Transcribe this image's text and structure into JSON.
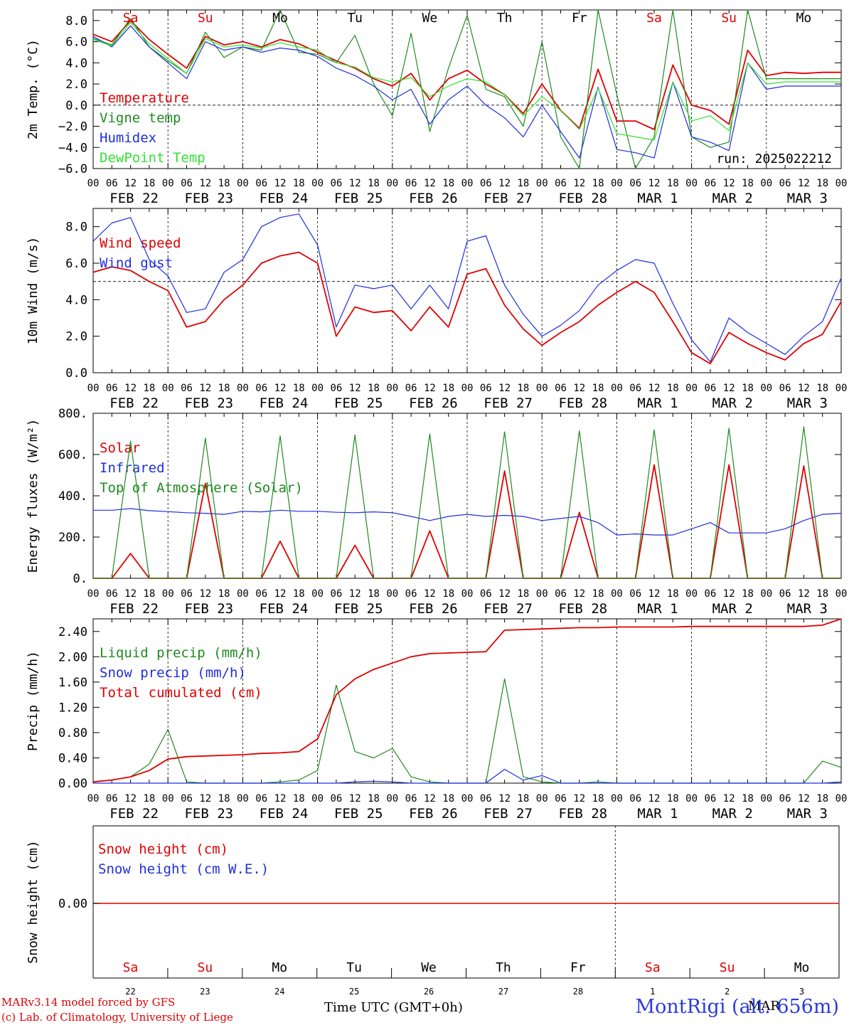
{
  "chart_data": [
    {
      "type": "line",
      "ylabel": "2m Temp. (°C)",
      "ylim": [
        -6,
        9
      ],
      "yticks": [
        "8.0",
        "6.0",
        "4.0",
        "2.0",
        "0.0",
        "−2.0",
        "−4.0",
        "−6.0"
      ],
      "reference_line": 0,
      "weekdays": [
        {
          "label": "Sa",
          "weekend": true
        },
        {
          "label": "Su",
          "weekend": true
        },
        {
          "label": "Mo",
          "weekend": false
        },
        {
          "label": "Tu",
          "weekend": false
        },
        {
          "label": "We",
          "weekend": false
        },
        {
          "label": "Th",
          "weekend": false
        },
        {
          "label": "Fr",
          "weekend": false
        },
        {
          "label": "Sa",
          "weekend": true
        },
        {
          "label": "Su",
          "weekend": true
        },
        {
          "label": "Mo",
          "weekend": false
        }
      ],
      "run_label": "run: 2025022212",
      "x_hours": [
        0,
        6,
        12,
        18,
        24,
        30,
        36,
        42,
        48,
        54,
        60,
        66,
        72,
        78,
        84,
        90,
        96,
        102,
        108,
        114,
        120,
        126,
        132,
        138,
        144,
        150,
        156,
        162,
        168,
        174,
        180,
        186,
        192,
        198,
        204,
        210,
        216,
        222,
        228,
        234,
        240
      ],
      "series": [
        {
          "name": "Temperature",
          "color": "#e00000",
          "values": [
            6.7,
            6.0,
            8.0,
            6.2,
            4.8,
            3.5,
            6.5,
            5.7,
            6.0,
            5.5,
            6.2,
            5.8,
            5.0,
            4.2,
            3.5,
            2.5,
            1.8,
            3.0,
            0.5,
            2.5,
            3.3,
            2.0,
            1.0,
            -0.8,
            2.0,
            -0.5,
            -2.2,
            3.4,
            -1.5,
            -1.5,
            -2.3,
            3.8,
            0.0,
            -0.5,
            -1.8,
            5.2,
            2.8,
            3.1,
            3.0,
            3.1,
            3.1
          ]
        },
        {
          "name": "Vigne temp",
          "color": "#1f8a1f",
          "values": [
            6.3,
            5.7,
            8.2,
            5.5,
            4.2,
            3.0,
            6.9,
            4.5,
            5.5,
            5.2,
            9.0,
            5.0,
            4.8,
            4.0,
            6.6,
            2.0,
            -1.0,
            6.8,
            -2.5,
            3.5,
            8.5,
            1.5,
            0.8,
            -2.0,
            6.0,
            -3.0,
            -6.0,
            9.2,
            1.0,
            -6.0,
            -3.0,
            9.2,
            -3.0,
            -4.0,
            -3.5,
            9.2,
            2.5,
            2.5,
            2.5,
            2.5,
            2.5
          ]
        },
        {
          "name": "Humidex",
          "color": "#1f2ee0",
          "values": [
            6.5,
            5.5,
            7.5,
            5.5,
            4.0,
            2.5,
            6.0,
            5.2,
            5.5,
            5.0,
            5.4,
            5.2,
            4.6,
            3.5,
            2.8,
            1.8,
            0.5,
            1.5,
            -1.8,
            0.5,
            1.8,
            0.0,
            -1.2,
            -3.0,
            0.0,
            -2.5,
            -5.0,
            1.7,
            -4.2,
            -4.5,
            -5.0,
            2.2,
            -3.0,
            -3.5,
            -4.3,
            4.0,
            1.5,
            1.8,
            1.8,
            1.8,
            1.8
          ]
        },
        {
          "name": "DewPoint Temp",
          "color": "#33e133",
          "values": [
            6.2,
            5.6,
            7.8,
            5.8,
            4.4,
            3.0,
            6.3,
            5.5,
            5.7,
            5.4,
            5.9,
            5.5,
            5.2,
            4.0,
            3.6,
            2.6,
            2.2,
            2.6,
            0.8,
            1.8,
            2.5,
            2.2,
            1.0,
            -1.0,
            0.8,
            -0.5,
            -2.3,
            1.6,
            -2.7,
            -3.0,
            -3.3,
            2.2,
            -1.5,
            -1.0,
            -2.4,
            4.0,
            2.0,
            2.2,
            2.2,
            2.2,
            2.2
          ]
        }
      ],
      "months_row": [
        "FEB 22",
        "FEB 23",
        "FEB 24",
        "FEB 25",
        "FEB 26",
        "FEB 27",
        "FEB 28",
        "MAR  1",
        "MAR  2",
        "MAR  3"
      ],
      "hour_ticks": [
        "00",
        "06",
        "12",
        "18"
      ]
    },
    {
      "type": "line",
      "ylabel": "10m Wind (m/s)",
      "ylim": [
        0,
        9
      ],
      "yticks": [
        "8.0",
        "6.0",
        "4.0",
        "2.0",
        "0.0"
      ],
      "reference_line": 5,
      "x_hours": [
        0,
        6,
        12,
        18,
        24,
        30,
        36,
        42,
        48,
        54,
        60,
        66,
        72,
        78,
        84,
        90,
        96,
        102,
        108,
        114,
        120,
        126,
        132,
        138,
        144,
        150,
        156,
        162,
        168,
        174,
        180,
        186,
        192,
        198,
        204,
        210,
        216,
        222,
        228,
        234,
        240
      ],
      "series": [
        {
          "name": "Wind speed",
          "color": "#e00000",
          "values": [
            5.5,
            5.8,
            5.6,
            5.0,
            4.5,
            2.5,
            2.8,
            4.0,
            4.8,
            6.0,
            6.4,
            6.6,
            6.0,
            2.0,
            3.6,
            3.3,
            3.4,
            2.3,
            3.6,
            2.5,
            5.4,
            5.7,
            3.7,
            2.4,
            1.5,
            2.2,
            2.8,
            3.7,
            4.4,
            5.0,
            4.4,
            2.8,
            1.1,
            0.5,
            2.2,
            1.6,
            1.1,
            0.7,
            1.6,
            2.1,
            3.9
          ]
        },
        {
          "name": "Wind gust",
          "color": "#1f2ee0",
          "values": [
            7.2,
            8.2,
            8.5,
            6.2,
            5.3,
            3.3,
            3.5,
            5.5,
            6.2,
            8.0,
            8.5,
            8.7,
            7.0,
            2.5,
            4.8,
            4.6,
            4.8,
            3.5,
            4.8,
            3.5,
            7.2,
            7.5,
            4.8,
            3.2,
            2.0,
            2.6,
            3.4,
            4.8,
            5.6,
            6.2,
            6.0,
            3.8,
            1.8,
            0.6,
            3.0,
            2.2,
            1.6,
            1.0,
            2.0,
            2.8,
            5.2
          ]
        }
      ],
      "months_row": [
        "FEB 22",
        "FEB 23",
        "FEB 24",
        "FEB 25",
        "FEB 26",
        "FEB 27",
        "FEB 28",
        "MAR  1",
        "MAR  2",
        "MAR  3"
      ],
      "hour_ticks": [
        "00",
        "06",
        "12",
        "18"
      ]
    },
    {
      "type": "line",
      "ylabel": "Energy fluxes (W/m²)",
      "ylim": [
        0,
        800
      ],
      "yticks": [
        "800.",
        "600.",
        "400.",
        "200.",
        "0."
      ],
      "x_hours": [
        0,
        6,
        12,
        18,
        24,
        30,
        36,
        42,
        48,
        54,
        60,
        66,
        72,
        78,
        84,
        90,
        96,
        102,
        108,
        114,
        120,
        126,
        132,
        138,
        144,
        150,
        156,
        162,
        168,
        174,
        180,
        186,
        192,
        198,
        204,
        210,
        216,
        222,
        228,
        234,
        240
      ],
      "series": [
        {
          "name": "Solar",
          "color": "#e00000",
          "values": [
            0,
            0,
            120,
            0,
            0,
            0,
            460,
            0,
            0,
            0,
            180,
            0,
            0,
            0,
            160,
            0,
            0,
            0,
            230,
            0,
            0,
            0,
            520,
            0,
            0,
            0,
            320,
            0,
            0,
            0,
            550,
            0,
            0,
            0,
            550,
            0,
            0,
            0,
            545,
            0,
            0
          ]
        },
        {
          "name": "Infrared",
          "color": "#1f2ee0",
          "values": [
            330,
            330,
            338,
            328,
            323,
            318,
            315,
            310,
            325,
            322,
            330,
            325,
            325,
            320,
            318,
            322,
            318,
            300,
            280,
            300,
            310,
            300,
            305,
            300,
            280,
            290,
            300,
            270,
            210,
            215,
            210,
            210,
            240,
            270,
            220,
            220,
            220,
            240,
            280,
            310,
            315
          ]
        },
        {
          "name": "Top of Atmosphere (Solar)",
          "color": "#1f8a1f",
          "values": [
            0,
            0,
            665,
            0,
            0,
            0,
            680,
            0,
            0,
            0,
            690,
            0,
            0,
            0,
            695,
            0,
            0,
            0,
            700,
            0,
            0,
            0,
            710,
            0,
            0,
            0,
            715,
            0,
            0,
            0,
            720,
            0,
            0,
            0,
            728,
            0,
            0,
            0,
            735,
            0,
            0
          ]
        }
      ],
      "months_row": [
        "FEB 22",
        "FEB 23",
        "FEB 24",
        "FEB 25",
        "FEB 26",
        "FEB 27",
        "FEB 28",
        "MAR  1",
        "MAR  2",
        "MAR  3"
      ],
      "hour_ticks": [
        "00",
        "06",
        "12",
        "18"
      ]
    },
    {
      "type": "line",
      "ylabel": "Precip (mm/h)",
      "ylim": [
        0,
        2.6
      ],
      "yticks": [
        "2.40",
        "2.00",
        "1.60",
        "1.20",
        "0.80",
        "0.40",
        "0.00"
      ],
      "x_hours": [
        0,
        6,
        12,
        18,
        24,
        30,
        36,
        42,
        48,
        54,
        60,
        66,
        72,
        78,
        84,
        90,
        96,
        102,
        108,
        114,
        120,
        126,
        132,
        138,
        144,
        150,
        156,
        162,
        168,
        174,
        180,
        186,
        192,
        198,
        204,
        210,
        216,
        222,
        228,
        234,
        240
      ],
      "series": [
        {
          "name": "Liquid precip (mm/h)",
          "color": "#1f8a1f",
          "values": [
            0.02,
            0.05,
            0.1,
            0.3,
            0.85,
            0.02,
            0.0,
            0.0,
            0.0,
            0.0,
            0.02,
            0.05,
            0.2,
            1.55,
            0.5,
            0.4,
            0.55,
            0.1,
            0.02,
            0.0,
            0.0,
            0.0,
            1.65,
            0.1,
            0.02,
            0.0,
            0.0,
            0.02,
            0.0,
            0.0,
            0.0,
            0.0,
            0.0,
            0.0,
            0.0,
            0.0,
            0.0,
            0.0,
            0.0,
            0.35,
            0.25
          ]
        },
        {
          "name": "Snow precip (mm/h)",
          "color": "#1f2ee0",
          "values": [
            0,
            0,
            0,
            0,
            0,
            0,
            0,
            0,
            0,
            0,
            0,
            0,
            0,
            0,
            0.02,
            0.03,
            0.02,
            0,
            0,
            0,
            0,
            0,
            0.22,
            0.05,
            0.12,
            0,
            0,
            0,
            0,
            0,
            0,
            0,
            0,
            0,
            0,
            0,
            0,
            0,
            0,
            0,
            0.02
          ]
        },
        {
          "name": "Total cumulated (cm)",
          "color": "#e00000",
          "values": [
            0.02,
            0.05,
            0.1,
            0.2,
            0.38,
            0.42,
            0.43,
            0.44,
            0.45,
            0.47,
            0.48,
            0.5,
            0.7,
            1.4,
            1.65,
            1.8,
            1.9,
            2.0,
            2.05,
            2.06,
            2.07,
            2.08,
            2.42,
            2.43,
            2.44,
            2.45,
            2.46,
            2.46,
            2.47,
            2.47,
            2.47,
            2.47,
            2.48,
            2.48,
            2.48,
            2.48,
            2.48,
            2.48,
            2.48,
            2.5,
            2.62
          ]
        }
      ],
      "months_row": [
        "FEB 22",
        "FEB 23",
        "FEB 24",
        "FEB 25",
        "FEB 26",
        "FEB 27",
        "FEB 28",
        "MAR  1",
        "MAR  2",
        "MAR  3"
      ],
      "hour_ticks": [
        "00",
        "06",
        "12",
        "18"
      ]
    },
    {
      "type": "line",
      "ylabel": "Snow height (cm)",
      "yticks": [
        "0.00"
      ],
      "series": [
        {
          "name": "Snow height (cm)",
          "color": "#e00000",
          "values": [
            0,
            0
          ]
        },
        {
          "name": "Snow height (cm W.E.)",
          "color": "#1f2ee0",
          "values": [
            0,
            0
          ]
        }
      ],
      "weekdays": [
        {
          "label": "Sa",
          "weekend": true
        },
        {
          "label": "Su",
          "weekend": true
        },
        {
          "label": "Mo",
          "weekend": false
        },
        {
          "label": "Tu",
          "weekend": false
        },
        {
          "label": "We",
          "weekend": false
        },
        {
          "label": "Th",
          "weekend": false
        },
        {
          "label": "Fr",
          "weekend": false
        },
        {
          "label": "Sa",
          "weekend": true
        },
        {
          "label": "Su",
          "weekend": true
        },
        {
          "label": "Mo",
          "weekend": false
        }
      ],
      "day_numbers": [
        "22",
        "23",
        "24",
        "25",
        "26",
        "27",
        "28",
        "1",
        "2",
        "3"
      ]
    }
  ],
  "footer": {
    "model_line1": "MARv3.14 model forced by GFS",
    "model_line2": "(c) Lab. of Climatology, University of Liege",
    "time_label": "Time UTC (GMT+0h)",
    "month_label": "FEB",
    "month_label_mar": "MAR",
    "station": "MontRigi (alt. 656m)"
  }
}
